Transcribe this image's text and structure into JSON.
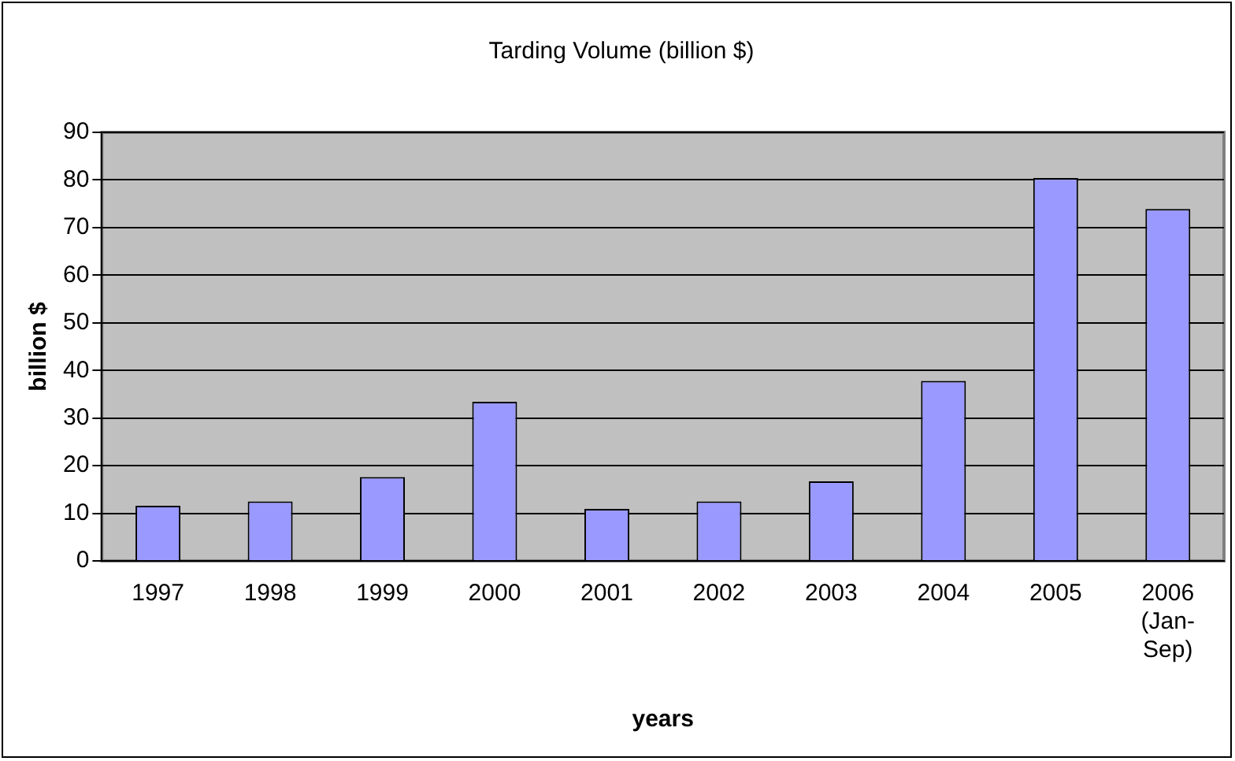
{
  "chart_data": {
    "type": "bar",
    "title": "Tarding Volume (billion $)",
    "xlabel": "years",
    "ylabel": "billion $",
    "categories": [
      "1997",
      "1998",
      "1999",
      "2000",
      "2001",
      "2002",
      "2003",
      "2004",
      "2005",
      "2006 (Jan-Sep)"
    ],
    "values": [
      11.6,
      12.5,
      17.6,
      33.4,
      10.9,
      12.5,
      16.7,
      37.8,
      80.4,
      73.9
    ],
    "color": "#9999ff",
    "ylim": [
      0,
      90
    ],
    "yticks": [
      0,
      10,
      20,
      30,
      40,
      50,
      60,
      70,
      80,
      90
    ],
    "grid": "y",
    "legend": false
  }
}
